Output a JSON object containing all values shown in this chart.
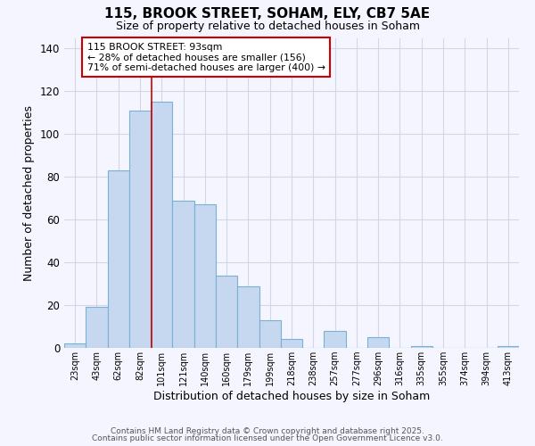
{
  "title": "115, BROOK STREET, SOHAM, ELY, CB7 5AE",
  "subtitle": "Size of property relative to detached houses in Soham",
  "xlabel": "Distribution of detached houses by size in Soham",
  "ylabel": "Number of detached properties",
  "bar_labels": [
    "23sqm",
    "43sqm",
    "62sqm",
    "82sqm",
    "101sqm",
    "121sqm",
    "140sqm",
    "160sqm",
    "179sqm",
    "199sqm",
    "218sqm",
    "238sqm",
    "257sqm",
    "277sqm",
    "296sqm",
    "316sqm",
    "335sqm",
    "355sqm",
    "374sqm",
    "394sqm",
    "413sqm"
  ],
  "bar_values": [
    2,
    19,
    83,
    111,
    115,
    69,
    67,
    34,
    29,
    13,
    4,
    0,
    8,
    0,
    5,
    0,
    1,
    0,
    0,
    0,
    1
  ],
  "bar_color": "#c5d8f0",
  "bar_edge_color": "#7bafd4",
  "ylim": [
    0,
    145
  ],
  "yticks": [
    0,
    20,
    40,
    60,
    80,
    100,
    120,
    140
  ],
  "annotation_box_text": "115 BROOK STREET: 93sqm\n← 28% of detached houses are smaller (156)\n71% of semi-detached houses are larger (400) →",
  "annotation_box_color": "#ffffff",
  "annotation_box_edge_color": "#cc0000",
  "red_line_x": 3.55,
  "footnote1": "Contains HM Land Registry data © Crown copyright and database right 2025.",
  "footnote2": "Contains public sector information licensed under the Open Government Licence v3.0.",
  "bg_color": "#f5f5ff",
  "grid_color": "#d0d8e8"
}
